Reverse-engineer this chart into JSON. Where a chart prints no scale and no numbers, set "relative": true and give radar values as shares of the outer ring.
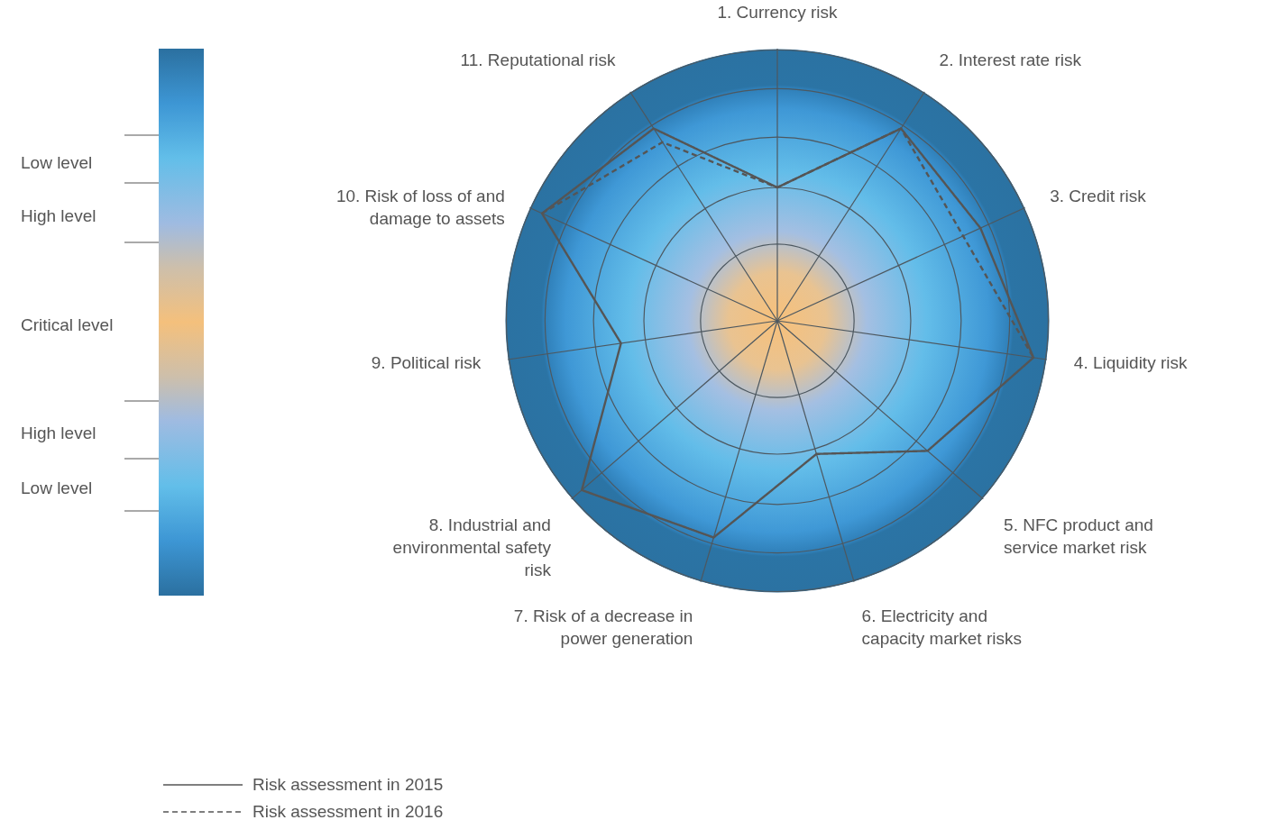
{
  "chart_data": {
    "type": "radar",
    "relative": true,
    "grid": true,
    "legend": "bottom left",
    "marker": "none",
    "categories": [
      "1. Currency risk",
      "2. Interest rate risk",
      "3. Credit risk",
      "4. Liquidity risk",
      "5. NFC product and service market risk",
      "6. Electricity and capacity market risks",
      "7. Risk of a decrease in power generation",
      "8. Industrial and environmental safety risk",
      "9. Political risk",
      "10. Risk of loss of and damage to assets",
      "11. Reputational risk"
    ],
    "series": [
      {
        "name": "Risk assessment in 2015",
        "color": "#555555",
        "line_style": "solid",
        "values": [
          0.49,
          0.84,
          0.82,
          0.95,
          0.73,
          0.51,
          0.83,
          0.95,
          0.58,
          0.95,
          0.84
        ]
      },
      {
        "name": "Risk assessment in 2016",
        "color": "#555555",
        "line_style": "dashed",
        "values": [
          0.49,
          0.84,
          0.75,
          0.95,
          null,
          null,
          null,
          null,
          null,
          0.95,
          0.78
        ]
      }
    ],
    "annotations": [
      "Low level",
      "High level",
      "Critical level",
      "High level",
      "Low level"
    ]
  }
}
